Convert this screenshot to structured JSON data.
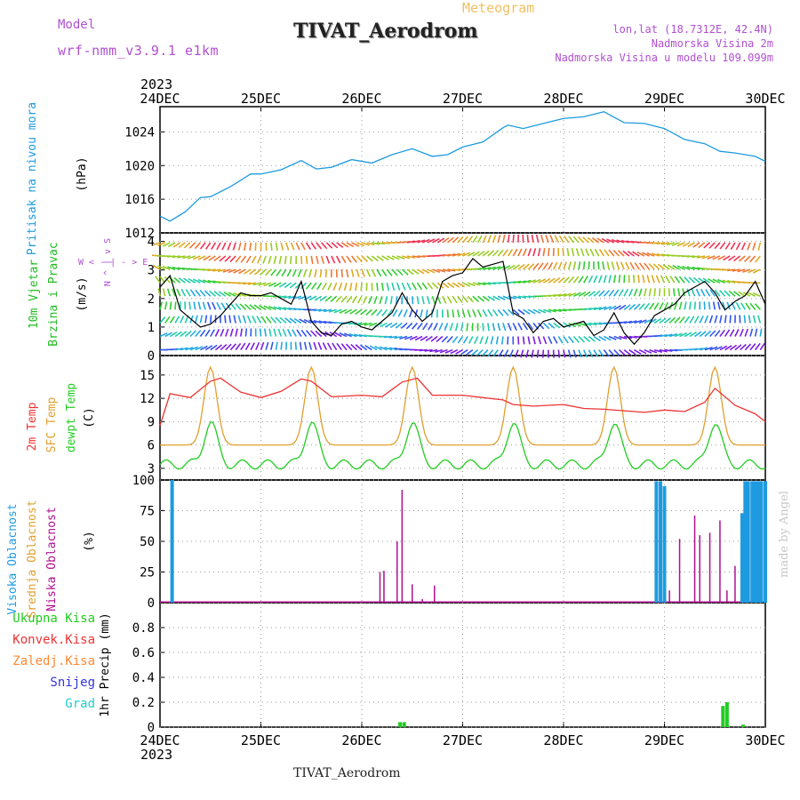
{
  "header": {
    "model_label": "Model",
    "model_name": "wrf-nmm_v3.9.1 e1km",
    "title": "TIVAT_Aerodrom",
    "subtitle": "Meteogram",
    "lonlat": "lon,lat (18.7312E, 42.4N)",
    "elev_station": "Nadmorska Visina 2m",
    "elev_model": "Nadmorska Visina u modelu 109.099m",
    "footer": "TIVAT_Aerodrom",
    "watermark": "made by Angel"
  },
  "colors": {
    "pressure": "#1e9be0",
    "t2m": "#ee3333",
    "sfc": "#e0a030",
    "dewpt": "#22cc22",
    "cloud_high": "#1e9be0",
    "cloud_mid": "#e0a030",
    "cloud_low": "#b01090",
    "precip_total": "#22cc22",
    "precip_conv": "#ee3333",
    "precip_grid": "#ff8833",
    "precip_snow": "#3333dd",
    "precip_graupel": "#22cccc",
    "model_label": "#b050d0",
    "subtitle": "#f0c060"
  },
  "chart_data": [
    {
      "type": "line",
      "title": "",
      "ylabel": "Pritisak na nivou mora",
      "unit": "(hPa)",
      "x_start_year": "2023",
      "x_ticks": [
        "24DEC",
        "25DEC",
        "26DEC",
        "27DEC",
        "28DEC",
        "29DEC",
        "30DEC"
      ],
      "grid": true,
      "ylim": [
        1012,
        1027
      ],
      "yticks": [
        1012,
        1016,
        1020,
        1024
      ],
      "series": [
        {
          "color_key": "pressure",
          "x": [
            0,
            0.1,
            0.25,
            0.4,
            0.5,
            0.7,
            0.9,
            1.0,
            1.2,
            1.4,
            1.55,
            1.7,
            1.9,
            2.1,
            2.3,
            2.5,
            2.7,
            2.85,
            3.0,
            3.2,
            3.4,
            3.45,
            3.6,
            3.8,
            4.0,
            4.2,
            4.4,
            4.6,
            4.8,
            5.0,
            5.2,
            5.4,
            5.55,
            5.7,
            5.9,
            6.0
          ],
          "y": [
            1014.0,
            1013.4,
            1014.5,
            1016.2,
            1016.3,
            1017.5,
            1019.0,
            1019.0,
            1019.5,
            1020.6,
            1019.6,
            1019.8,
            1020.7,
            1020.3,
            1021.3,
            1022.0,
            1021.1,
            1021.3,
            1022.2,
            1022.8,
            1024.5,
            1024.8,
            1024.4,
            1025.0,
            1025.6,
            1025.8,
            1026.4,
            1025.1,
            1025.0,
            1024.4,
            1023.1,
            1022.6,
            1021.7,
            1021.5,
            1021.1,
            1020.5
          ]
        }
      ]
    },
    {
      "type": "line",
      "title": "",
      "ylabel": "10m Vjetar Brzina i Pravac",
      "unit": "(m/s)",
      "grid": true,
      "ylim": [
        0,
        4.3
      ],
      "yticks": [
        0,
        1,
        2,
        3,
        4
      ],
      "direction_legend": [
        "W",
        "<",
        "-",
        "|",
        "-",
        ">",
        "E"
      ],
      "direction_legend_vertical": [
        "N",
        "^",
        "|",
        "v",
        "S"
      ],
      "series": [
        {
          "name": "speed",
          "color": "#000000",
          "x": [
            0,
            0.1,
            0.2,
            0.3,
            0.4,
            0.5,
            0.6,
            0.7,
            0.8,
            0.9,
            1.0,
            1.1,
            1.2,
            1.3,
            1.4,
            1.5,
            1.6,
            1.7,
            1.8,
            1.9,
            2.0,
            2.1,
            2.2,
            2.3,
            2.4,
            2.5,
            2.6,
            2.7,
            2.8,
            2.9,
            3.0,
            3.1,
            3.2,
            3.3,
            3.4,
            3.5,
            3.6,
            3.7,
            3.8,
            3.9,
            4.0,
            4.1,
            4.2,
            4.3,
            4.4,
            4.5,
            4.6,
            4.7,
            4.8,
            4.9,
            5.0,
            5.1,
            5.2,
            5.3,
            5.4,
            5.5,
            5.6,
            5.7,
            5.8,
            5.9,
            6.0
          ],
          "y": [
            2.4,
            2.8,
            1.6,
            1.3,
            1.0,
            1.1,
            1.4,
            1.8,
            2.2,
            2.1,
            2.1,
            2.2,
            2.0,
            1.8,
            2.6,
            1.2,
            0.8,
            0.7,
            1.1,
            1.2,
            1.0,
            0.9,
            1.2,
            1.5,
            2.2,
            1.6,
            1.2,
            1.5,
            2.6,
            2.8,
            2.9,
            3.4,
            3.1,
            3.2,
            3.3,
            1.5,
            1.3,
            0.8,
            1.2,
            1.3,
            1.0,
            1.1,
            1.2,
            0.7,
            0.9,
            1.5,
            0.8,
            0.4,
            0.8,
            1.4,
            1.6,
            1.8,
            2.2,
            2.4,
            2.6,
            2.2,
            1.6,
            1.9,
            2.1,
            2.6,
            1.8
          ]
        }
      ]
    },
    {
      "type": "line",
      "title": "",
      "ylabel": [
        "2m Temp",
        "SFC Temp",
        "dewpt Temp"
      ],
      "unit": "(C)",
      "grid": true,
      "ylim": [
        1.5,
        17.5
      ],
      "yticks": [
        3,
        6,
        9,
        12,
        15
      ],
      "series": [
        {
          "name": "2m Temp",
          "color_key": "t2m",
          "x": [
            0,
            0.1,
            0.3,
            0.5,
            0.6,
            0.8,
            1.0,
            1.2,
            1.4,
            1.5,
            1.7,
            2.0,
            2.2,
            2.4,
            2.55,
            2.7,
            3.0,
            3.2,
            3.4,
            3.5,
            3.7,
            4.0,
            4.2,
            4.4,
            4.6,
            4.8,
            5.0,
            5.2,
            5.4,
            5.5,
            5.7,
            5.9,
            6.0
          ],
          "y": [
            8.5,
            12.6,
            12.1,
            14.2,
            14.6,
            12.8,
            12.1,
            12.9,
            14.5,
            14.2,
            12.2,
            12.4,
            12.2,
            14.1,
            14.6,
            12.4,
            12.4,
            12.1,
            11.8,
            11.2,
            11.0,
            11.2,
            10.7,
            10.6,
            10.4,
            10.2,
            10.5,
            10.3,
            11.5,
            13.3,
            11.1,
            10.0,
            9.0
          ]
        }
      ]
    },
    {
      "type": "bar",
      "title": "",
      "ylabel": [
        "Visoka Oblacnost",
        "Srednja Oblacnost",
        "Niska Oblacnost"
      ],
      "unit": "(%)",
      "grid": true,
      "ylim": [
        0,
        100
      ],
      "yticks": [
        0,
        25,
        50,
        75,
        100
      ],
      "series": [
        {
          "name": "Visoka Oblacnost",
          "color_key": "cloud_high",
          "x": [
            0.12,
            4.92,
            4.96,
            5.0,
            5.77,
            5.8,
            5.83,
            5.87,
            5.9,
            5.93,
            5.96,
            6.0
          ],
          "values": [
            100,
            99,
            99,
            95,
            73,
            99,
            99,
            99,
            99,
            99,
            99,
            99
          ]
        },
        {
          "name": "Niska Oblacnost",
          "color_key": "cloud_low",
          "x": [
            2.18,
            2.22,
            2.35,
            2.4,
            2.5,
            2.6,
            2.72,
            5.05,
            5.15,
            5.3,
            5.35,
            5.45,
            5.55,
            5.62,
            5.7
          ],
          "values": [
            25,
            26,
            50,
            92,
            15,
            3,
            14,
            10,
            52,
            71,
            55,
            57,
            67,
            10,
            30
          ]
        }
      ]
    },
    {
      "type": "bar",
      "title": "",
      "ylabel": "1hr Precip",
      "unit": "(mm)",
      "legend_entries": [
        "Ukupna Kisa",
        "Konvek.Kisa",
        "Zaledj.Kisa",
        "Snijeg",
        "Grad"
      ],
      "grid": true,
      "ylim": [
        0,
        1.0
      ],
      "yticks": [
        0,
        0.2,
        0.4,
        0.6,
        0.8
      ],
      "series": [
        {
          "name": "Ukupna Kisa",
          "color_key": "precip_total",
          "x": [
            2.38,
            2.42,
            5.58,
            5.62,
            5.78
          ],
          "values": [
            0.04,
            0.04,
            0.17,
            0.2,
            0.02
          ]
        }
      ]
    }
  ]
}
